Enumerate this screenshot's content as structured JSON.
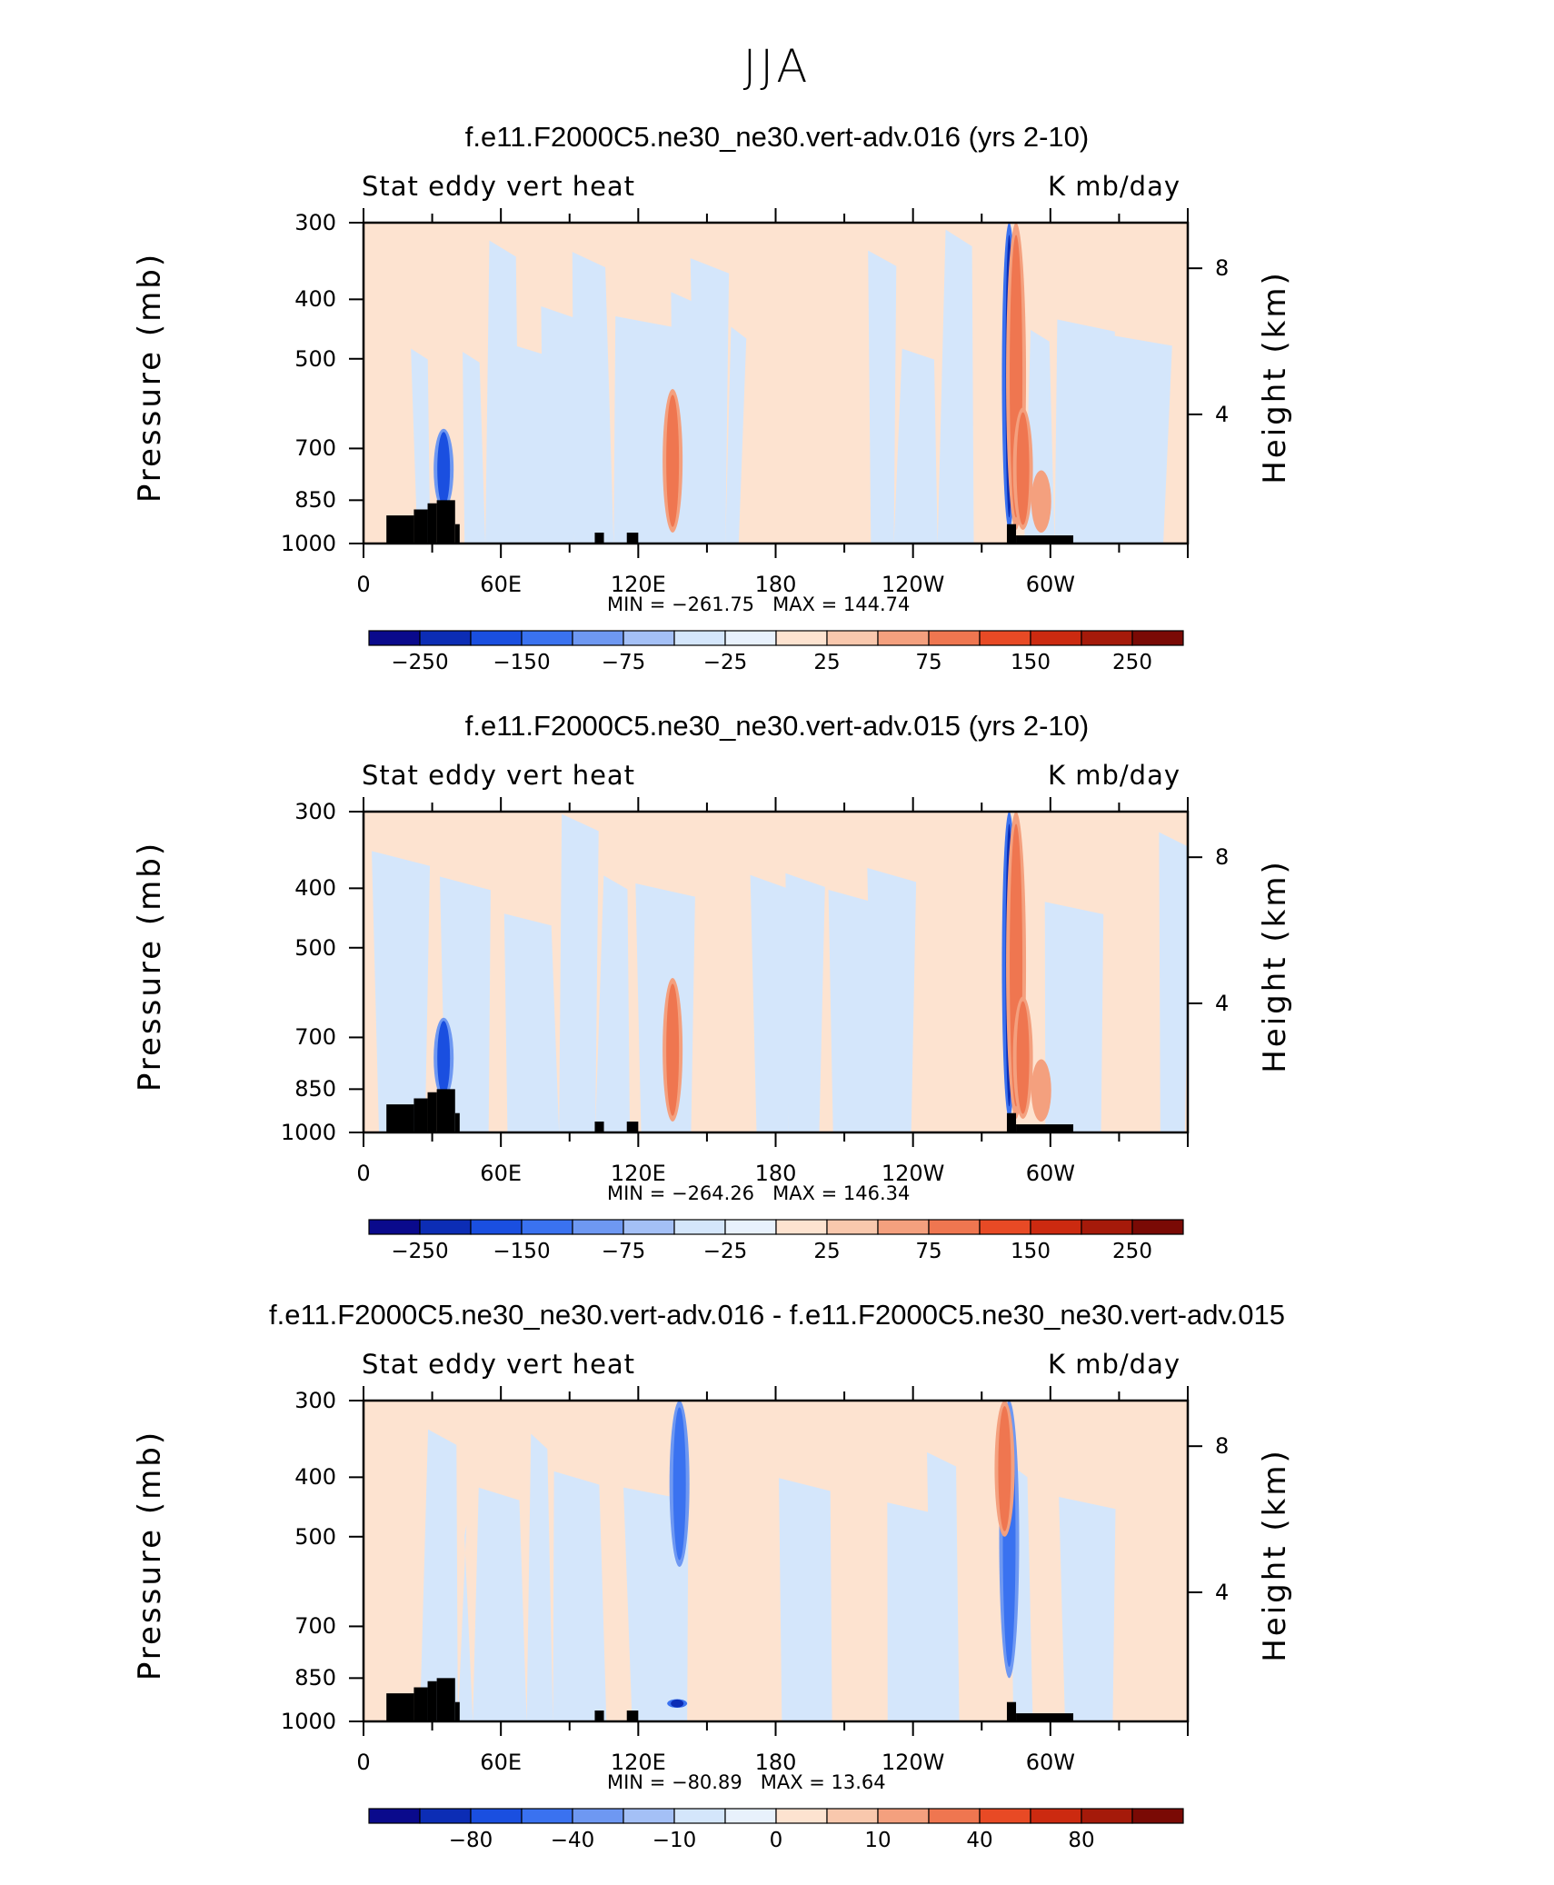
{
  "page_title": "JJA",
  "colors": {
    "blues": [
      "#0a0a8c",
      "#0c2db5",
      "#1a4fe0",
      "#3a72f0",
      "#6e98f2",
      "#a4c0f6",
      "#d4e6fb"
    ],
    "reds": [
      "#fde3d0",
      "#f9c8ad",
      "#f4a07e",
      "#ef7650",
      "#e84a25",
      "#cc2a10",
      "#a51a0a",
      "#7a0a05"
    ],
    "land": "#000000"
  },
  "chart_data": [
    {
      "type": "heatmap",
      "title": "f.e11.F2000C5.ne30_ne30.vert-adv.016 (yrs 2-10)",
      "left_string": "Stat eddy vert heat",
      "right_string": "K mb/day",
      "ylabel": "Pressure (mb)",
      "ylabel_right": "Height (km)",
      "yticks": [
        "300",
        "400",
        "500",
        "700",
        "850",
        "1000"
      ],
      "ytick_values": [
        300,
        400,
        500,
        700,
        850,
        1000
      ],
      "yticks_right": [
        "8",
        "4"
      ],
      "yticks_right_values": [
        8,
        4
      ],
      "xticks": [
        "0",
        "60E",
        "120E",
        "180",
        "120W",
        "60W"
      ],
      "xtick_values": [
        0,
        60,
        120,
        180,
        240,
        300
      ],
      "xlim": [
        0,
        360
      ],
      "ylim": [
        300,
        1000
      ],
      "min_label": "MIN = ",
      "min_value": "−261.75",
      "max_label": "MAX = ",
      "max_value": "144.74",
      "colorbar_ticks": [
        "−250",
        "−150",
        "−75",
        "−25",
        "25",
        "75",
        "150",
        "250"
      ],
      "features": [
        {
          "lon": 35,
          "p_top": 650,
          "p_bot": 880,
          "value": -150
        },
        {
          "lon": 135,
          "p_top": 560,
          "p_bot": 960,
          "value": 120
        },
        {
          "lon": 282,
          "p_top": 300,
          "p_bot": 950,
          "value": -260
        },
        {
          "lon": 285,
          "p_top": 300,
          "p_bot": 950,
          "value": 90
        },
        {
          "lon": 288,
          "p_top": 600,
          "p_bot": 950,
          "value": 90
        },
        {
          "lon": 296,
          "p_top": 760,
          "p_bot": 960,
          "value": 60
        }
      ]
    },
    {
      "type": "heatmap",
      "title": "f.e11.F2000C5.ne30_ne30.vert-adv.015 (yrs 2-10)",
      "left_string": "Stat eddy vert heat",
      "right_string": "K mb/day",
      "ylabel": "Pressure (mb)",
      "ylabel_right": "Height (km)",
      "yticks": [
        "300",
        "400",
        "500",
        "700",
        "850",
        "1000"
      ],
      "ytick_values": [
        300,
        400,
        500,
        700,
        850,
        1000
      ],
      "yticks_right": [
        "8",
        "4"
      ],
      "yticks_right_values": [
        8,
        4
      ],
      "xticks": [
        "0",
        "60E",
        "120E",
        "180",
        "120W",
        "60W"
      ],
      "xtick_values": [
        0,
        60,
        120,
        180,
        240,
        300
      ],
      "xlim": [
        0,
        360
      ],
      "ylim": [
        300,
        1000
      ],
      "min_label": "MIN = ",
      "min_value": "−264.26",
      "max_label": "MAX = ",
      "max_value": "146.34",
      "colorbar_ticks": [
        "−250",
        "−150",
        "−75",
        "−25",
        "25",
        "75",
        "150",
        "250"
      ],
      "features": [
        {
          "lon": 35,
          "p_top": 650,
          "p_bot": 880,
          "value": -150
        },
        {
          "lon": 135,
          "p_top": 560,
          "p_bot": 960,
          "value": 120
        },
        {
          "lon": 282,
          "p_top": 300,
          "p_bot": 950,
          "value": -260
        },
        {
          "lon": 285,
          "p_top": 300,
          "p_bot": 950,
          "value": 90
        },
        {
          "lon": 288,
          "p_top": 600,
          "p_bot": 950,
          "value": 90
        },
        {
          "lon": 296,
          "p_top": 760,
          "p_bot": 960,
          "value": 60
        }
      ]
    },
    {
      "type": "heatmap",
      "title": "f.e11.F2000C5.ne30_ne30.vert-adv.016 - f.e11.F2000C5.ne30_ne30.vert-adv.015",
      "left_string": "Stat eddy vert heat",
      "right_string": "K mb/day",
      "ylabel": "Pressure (mb)",
      "ylabel_right": "Height (km)",
      "yticks": [
        "300",
        "400",
        "500",
        "700",
        "850",
        "1000"
      ],
      "ytick_values": [
        300,
        400,
        500,
        700,
        850,
        1000
      ],
      "yticks_right": [
        "8",
        "4"
      ],
      "yticks_right_values": [
        8,
        4
      ],
      "xticks": [
        "0",
        "60E",
        "120E",
        "180",
        "120W",
        "60W"
      ],
      "xtick_values": [
        0,
        60,
        120,
        180,
        240,
        300
      ],
      "xlim": [
        0,
        360
      ],
      "ylim": [
        300,
        1000
      ],
      "min_label": "MIN = ",
      "min_value": "−80.89",
      "max_label": "MAX = ",
      "max_value": "13.64",
      "colorbar_ticks": [
        "−80",
        "−40",
        "−10",
        "0",
        "10",
        "40",
        "80"
      ],
      "features": [
        {
          "lon": 138,
          "p_top": 300,
          "p_bot": 560,
          "value": -10
        },
        {
          "lon": 137,
          "p_top": 920,
          "p_bot": 950,
          "value": -80
        },
        {
          "lon": 282,
          "p_top": 300,
          "p_bot": 850,
          "value": -10
        },
        {
          "lon": 280,
          "p_top": 300,
          "p_bot": 500,
          "value": 10
        }
      ]
    }
  ]
}
